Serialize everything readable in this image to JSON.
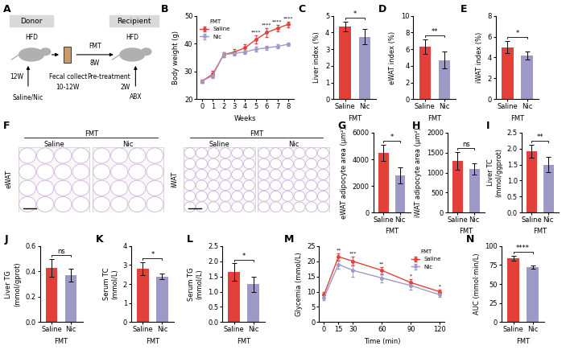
{
  "chart_data": [
    {
      "panel": "B",
      "type": "line",
      "x_label": "Weeks",
      "y_label": "Body weight (g)",
      "x": [
        0,
        1,
        2,
        3,
        4,
        5,
        6,
        7,
        8
      ],
      "xlim": [
        -0.5,
        8.5
      ],
      "xticks": [
        0,
        1,
        2,
        3,
        4,
        5,
        6,
        7,
        8
      ],
      "ylim": [
        20,
        50
      ],
      "yticks": [
        20,
        30,
        40,
        50
      ],
      "legend": "upper left",
      "legend_title": "FMT",
      "series": [
        {
          "name": "Saline",
          "color": "#e3403a",
          "marker": "circle",
          "values": [
            26.5,
            29,
            36,
            37,
            38.5,
            41.5,
            44,
            45.5,
            47
          ],
          "errors": [
            0.5,
            1.2,
            1.0,
            1.0,
            1.2,
            1.5,
            1.5,
            1.2,
            1.0
          ]
        },
        {
          "name": "Nic",
          "color": "#9e9ac8",
          "marker": "circle",
          "values": [
            26.5,
            28.5,
            36,
            36.5,
            37,
            38,
            38.5,
            39,
            39.8
          ],
          "errors": [
            0.5,
            1.0,
            0.8,
            0.8,
            0.8,
            0.8,
            0.8,
            0.8,
            0.7
          ]
        }
      ],
      "annotations": [
        {
          "x": 5,
          "text": "****"
        },
        {
          "x": 6,
          "text": "****"
        },
        {
          "x": 7,
          "text": "****"
        },
        {
          "x": 8,
          "text": "****"
        }
      ]
    },
    {
      "panel": "C",
      "type": "bar",
      "x_label": "FMT",
      "y_label": "Liver index (%)",
      "categories": [
        "Saline",
        "Nic"
      ],
      "values": [
        4.35,
        3.75
      ],
      "errors": [
        0.3,
        0.45
      ],
      "colors": [
        "#e3403a",
        "#9e9ac8"
      ],
      "ylim": [
        0,
        5
      ],
      "yticks": [
        0,
        1,
        2,
        3,
        4,
        5
      ],
      "annotation": "*"
    },
    {
      "panel": "D",
      "type": "bar",
      "x_label": "FMT",
      "y_label": "eWAT index (%)",
      "categories": [
        "Saline",
        "Nic"
      ],
      "values": [
        6.3,
        4.7
      ],
      "errors": [
        0.9,
        1.0
      ],
      "colors": [
        "#e3403a",
        "#9e9ac8"
      ],
      "ylim": [
        0,
        10
      ],
      "yticks": [
        0,
        2,
        4,
        6,
        8,
        10
      ],
      "annotation": "**"
    },
    {
      "panel": "E",
      "type": "bar",
      "x_label": "FMT",
      "y_label": "iWAT index (%)",
      "categories": [
        "Saline",
        "Nic"
      ],
      "values": [
        5.0,
        4.2
      ],
      "errors": [
        0.6,
        0.4
      ],
      "colors": [
        "#e3403a",
        "#9e9ac8"
      ],
      "ylim": [
        0,
        8
      ],
      "yticks": [
        0,
        2,
        4,
        6,
        8
      ],
      "annotation": "*"
    },
    {
      "panel": "G",
      "type": "bar",
      "x_label": "FMT",
      "y_label": "eWAT adipocyte area (μm²)",
      "categories": [
        "Saline",
        "Nic"
      ],
      "values": [
        4500,
        2800
      ],
      "errors": [
        600,
        600
      ],
      "colors": [
        "#e3403a",
        "#9e9ac8"
      ],
      "ylim": [
        0,
        6000
      ],
      "yticks": [
        0,
        2000,
        4000,
        6000
      ],
      "annotation": "*"
    },
    {
      "panel": "H",
      "type": "bar",
      "x_label": "FMT",
      "y_label": "iWAT adipocyte area (μm²)",
      "categories": [
        "Saline",
        "Nic"
      ],
      "values": [
        1290,
        1090
      ],
      "errors": [
        220,
        150
      ],
      "colors": [
        "#e3403a",
        "#9e9ac8"
      ],
      "ylim": [
        0,
        2000
      ],
      "yticks": [
        0,
        500,
        1000,
        1500,
        2000
      ],
      "annotation": "ns"
    },
    {
      "panel": "I",
      "type": "bar",
      "x_label": "FMT",
      "y_label": "Liver TC\n(mmol/ggprot)",
      "categories": [
        "Saline",
        "Nic"
      ],
      "values": [
        1.92,
        1.5
      ],
      "errors": [
        0.2,
        0.25
      ],
      "colors": [
        "#e3403a",
        "#9e9ac8"
      ],
      "ylim": [
        0,
        2.5
      ],
      "yticks": [
        {
          "value": 0,
          "label": "0.0"
        },
        0.5,
        {
          "value": 1,
          "label": "1.0"
        },
        1.5,
        {
          "value": 2,
          "label": "2.0"
        },
        2.5
      ],
      "annotation": "**"
    },
    {
      "panel": "J",
      "type": "bar",
      "x_label": "FMT",
      "y_label": "Liver TG\n(mmol/gprot)",
      "categories": [
        "Saline",
        "Nic"
      ],
      "values": [
        0.43,
        0.37
      ],
      "errors": [
        0.07,
        0.05
      ],
      "colors": [
        "#e3403a",
        "#9e9ac8"
      ],
      "ylim": [
        0,
        0.6
      ],
      "yticks": [
        {
          "value": 0,
          "label": "0.0"
        },
        0.2,
        0.4,
        0.6
      ],
      "annotation": "ns"
    },
    {
      "panel": "K",
      "type": "bar",
      "x_label": "FMT",
      "y_label": "Serum TC\n(mmol/L)",
      "categories": [
        "Saline",
        "Nic"
      ],
      "values": [
        2.8,
        2.4
      ],
      "errors": [
        0.35,
        0.15
      ],
      "colors": [
        "#e3403a",
        "#9e9ac8"
      ],
      "ylim": [
        0,
        4
      ],
      "yticks": [
        0,
        1,
        2,
        3,
        4
      ],
      "annotation": "*"
    },
    {
      "panel": "L",
      "type": "bar",
      "x_label": "FMT",
      "y_label": "Serum TG\n(mmol/L)",
      "categories": [
        "Saline",
        "Nic"
      ],
      "values": [
        1.65,
        1.25
      ],
      "errors": [
        0.28,
        0.25
      ],
      "colors": [
        "#e3403a",
        "#9e9ac8"
      ],
      "ylim": [
        0,
        2.5
      ],
      "yticks": [
        {
          "value": 0,
          "label": "0.0"
        },
        0.5,
        {
          "value": 1,
          "label": "1.0"
        },
        1.5,
        {
          "value": 2,
          "label": "2.0"
        },
        2.5
      ],
      "annotation": "*"
    },
    {
      "panel": "M",
      "type": "line",
      "x_label": "Time (min)",
      "y_label": "Glycemia (mmol/L)",
      "x": [
        0,
        15,
        30,
        60,
        90,
        120
      ],
      "xlim": [
        -5,
        125
      ],
      "xticks": [
        0,
        15,
        30,
        60,
        90,
        120
      ],
      "ylim": [
        0,
        25
      ],
      "yticks": [
        0,
        5,
        10,
        15,
        20,
        25
      ],
      "legend": "upper right",
      "legend_title": "FMT",
      "series": [
        {
          "name": "Saline",
          "color": "#e3403a",
          "marker": "circle",
          "values": [
            9,
            21.5,
            20,
            17,
            13,
            10
          ],
          "errors": [
            1.0,
            1.2,
            1.5,
            1.2,
            1.0,
            0.6
          ]
        },
        {
          "name": "Nic",
          "color": "#9e9ac8",
          "marker": "circle",
          "values": [
            8,
            19,
            17,
            14.5,
            12,
            9
          ],
          "errors": [
            0.8,
            1.5,
            2.0,
            1.5,
            1.2,
            0.6
          ]
        }
      ],
      "annotations": [
        {
          "x": 15,
          "text": "**"
        },
        {
          "x": 30,
          "text": "***"
        },
        {
          "x": 60,
          "text": "**"
        },
        {
          "x": 90,
          "text": "*"
        },
        {
          "x": 120,
          "text": "*"
        }
      ]
    },
    {
      "panel": "N",
      "type": "bar",
      "x_label": "FMT",
      "y_label": "AUC (mmol·min/L)",
      "categories": [
        "Saline",
        "Nic"
      ],
      "values": [
        84,
        72
      ],
      "errors": [
        3,
        2
      ],
      "colors": [
        "#e3403a",
        "#9e9ac8"
      ],
      "ylim": [
        0,
        100
      ],
      "yticks": [
        0,
        25,
        50,
        75,
        100
      ],
      "annotation": "****"
    }
  ],
  "diagram": {
    "panel": "A",
    "donor": "Donor",
    "recipient": "Recipient",
    "donor_diet": "HFD",
    "donor_age": "12W",
    "donor_treatment": "Saline/Nic",
    "fecal": "Fecal collect",
    "fecal_time": "10-12W",
    "fmt": "FMT",
    "fmt_time": "8W",
    "recipient_diet": "HFD",
    "pretreatment": "Pre-treatment",
    "pretreatment_time": "2W",
    "abx": "ABX"
  },
  "images": {
    "panel": "F",
    "group_label": "FMT",
    "columns": [
      "Saline",
      "Nic"
    ],
    "tissues": [
      "eWAT",
      "iWAT"
    ]
  }
}
